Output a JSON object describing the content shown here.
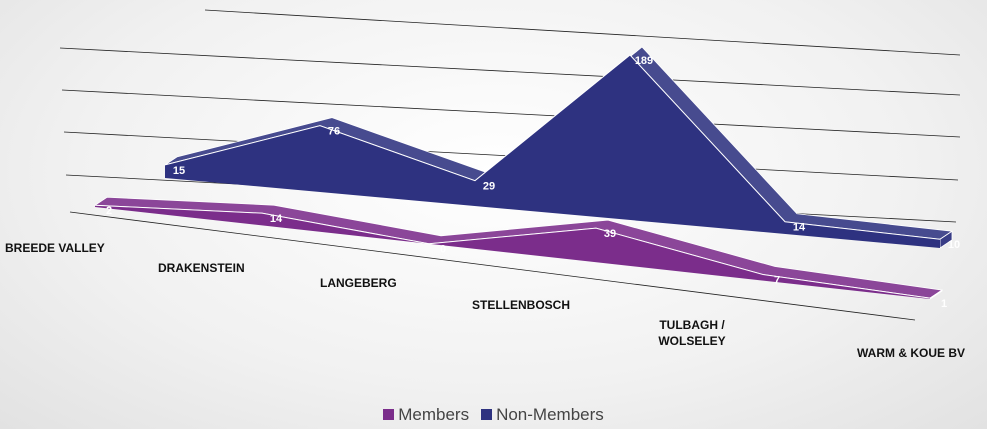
{
  "chart_data": {
    "type": "area3d",
    "categories": [
      "BREEDE VALLEY",
      "DRAKENSTEIN",
      "LANGEBERG",
      "STELLENBOSCH",
      "TULBAGH / WOLSELEY",
      "WARM & KOUE BV"
    ],
    "series": [
      {
        "name": "Members",
        "color": "#7b2d8b",
        "values": [
          2,
          14,
          0,
          39,
          7,
          1
        ]
      },
      {
        "name": "Non-Members",
        "color": "#2e3280",
        "values": [
          15,
          76,
          29,
          189,
          14,
          10
        ]
      }
    ],
    "legend": "bottom"
  }
}
